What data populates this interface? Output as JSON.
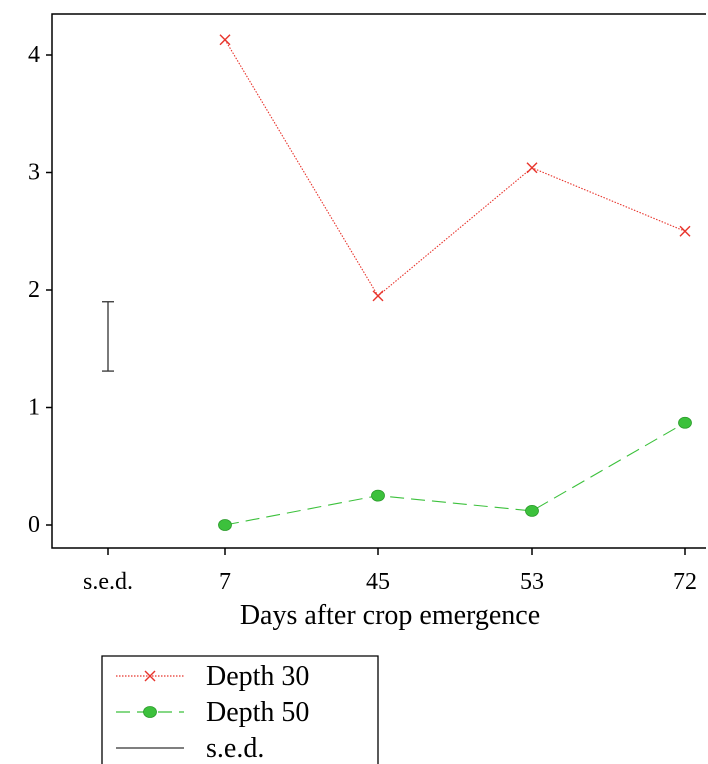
{
  "chart_data": {
    "type": "line",
    "title": "",
    "xlabel": "Days after crop emergence",
    "ylabel": "",
    "categories": [
      "s.e.d.",
      "7",
      "45",
      "53",
      "72"
    ],
    "ylim": [
      0,
      4
    ],
    "yticks": [
      0,
      1,
      2,
      3,
      4
    ],
    "grid": false,
    "legend_position": "bottom-left",
    "series": [
      {
        "name": "Depth 30",
        "x": [
          "7",
          "45",
          "53",
          "72"
        ],
        "values": [
          4.13,
          1.95,
          3.04,
          2.5
        ],
        "color": "#e8342c",
        "line_style": "dotted",
        "marker": "x"
      },
      {
        "name": "Depth 50",
        "x": [
          "7",
          "45",
          "53",
          "72"
        ],
        "values": [
          0.0,
          0.25,
          0.12,
          0.87
        ],
        "color": "#3cc13c",
        "line_style": "dashed",
        "marker": "circle"
      }
    ],
    "sed": {
      "name": "s.e.d.",
      "category": "s.e.d.",
      "low": 1.31,
      "high": 1.9,
      "color": "#333333"
    }
  }
}
